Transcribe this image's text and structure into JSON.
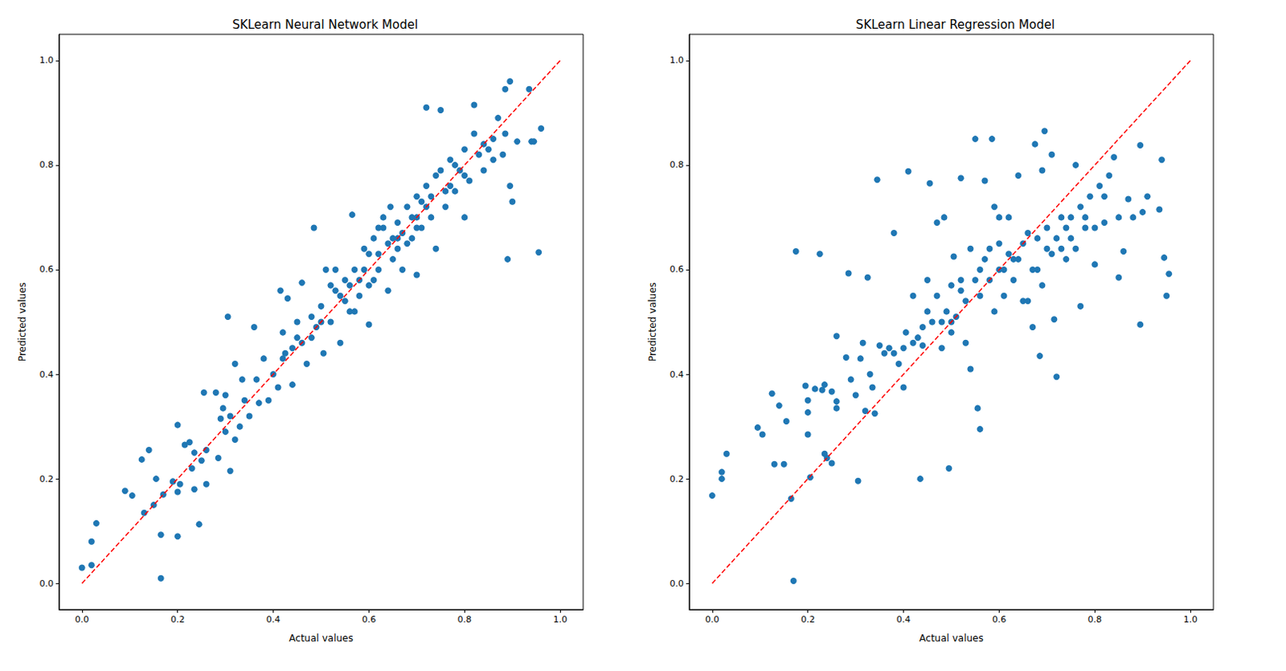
{
  "chart_data": [
    {
      "type": "scatter",
      "title": "SKLearn Neural Network Model",
      "x_label": "Actual values",
      "y_label": "Predicted values",
      "xlim": [
        -0.048,
        1.048
      ],
      "ylim": [
        -0.05,
        1.05
      ],
      "xticks": [
        {
          "value": 0,
          "label": "0.0"
        },
        {
          "value": 0.2,
          "label": "0.2"
        },
        {
          "value": 0.4,
          "label": "0.4"
        },
        {
          "value": 0.6,
          "label": "0.6"
        },
        {
          "value": 0.8,
          "label": "0.8"
        },
        {
          "value": 1,
          "label": "1.0"
        }
      ],
      "yticks": [
        {
          "value": 0,
          "label": "0.0"
        },
        {
          "value": 0.2,
          "label": "0.2"
        },
        {
          "value": 0.4,
          "label": "0.4"
        },
        {
          "value": 0.6,
          "label": "0.6"
        },
        {
          "value": 0.8,
          "label": "0.8"
        },
        {
          "value": 1,
          "label": "1.0"
        }
      ],
      "grid": false,
      "series": [
        {
          "type": "scatter",
          "color": "#1f77b4",
          "marker": "circle",
          "x": [
            0,
            0.02,
            0.02,
            0.03,
            0.09,
            0.105,
            0.125,
            0.13,
            0.14,
            0.15,
            0.155,
            0.165,
            0.165,
            0.17,
            0.19,
            0.2,
            0.2,
            0.2,
            0.205,
            0.215,
            0.225,
            0.23,
            0.235,
            0.235,
            0.245,
            0.25,
            0.255,
            0.26,
            0.26,
            0.28,
            0.285,
            0.29,
            0.295,
            0.3,
            0.3,
            0.305,
            0.31,
            0.31,
            0.32,
            0.32,
            0.33,
            0.335,
            0.34,
            0.35,
            0.36,
            0.365,
            0.37,
            0.38,
            0.39,
            0.4,
            0.41,
            0.415,
            0.42,
            0.425,
            0.43,
            0.44,
            0.45,
            0.46,
            0.47,
            0.48,
            0.485,
            0.49,
            0.5,
            0.505,
            0.51,
            0.52,
            0.53,
            0.54,
            0.55,
            0.56,
            0.565,
            0.57,
            0.58,
            0.59,
            0.6,
            0.6,
            0.61,
            0.62,
            0.63,
            0.64,
            0.645,
            0.65,
            0.66,
            0.67,
            0.68,
            0.69,
            0.7,
            0.7,
            0.71,
            0.72,
            0.72,
            0.73,
            0.74,
            0.75,
            0.75,
            0.76,
            0.77,
            0.78,
            0.79,
            0.8,
            0.8,
            0.81,
            0.82,
            0.83,
            0.84,
            0.85,
            0.86,
            0.87,
            0.88,
            0.885,
            0.89,
            0.895,
            0.895,
            0.9,
            0.91,
            0.935,
            0.94,
            0.945,
            0.955,
            0.96,
            0.885,
            0.86,
            0.82,
            0.78,
            0.7,
            0.66,
            0.62,
            0.58,
            0.54,
            0.5,
            0.46,
            0.42,
            0.55,
            0.6,
            0.65,
            0.68,
            0.72,
            0.76,
            0.52,
            0.48,
            0.44,
            0.57,
            0.63,
            0.67,
            0.74,
            0.8,
            0.84,
            0.53,
            0.45,
            0.61,
            0.69,
            0.71,
            0.77,
            0.59,
            0.56,
            0.64,
            0.66,
            0.7,
            0.73,
            0.62
          ],
          "values": [
            0.03,
            0.08,
            0.035,
            0.115,
            0.177,
            0.168,
            0.237,
            0.135,
            0.255,
            0.15,
            0.2,
            0.01,
            0.093,
            0.17,
            0.195,
            0.09,
            0.303,
            0.175,
            0.19,
            0.265,
            0.27,
            0.22,
            0.25,
            0.18,
            0.113,
            0.235,
            0.365,
            0.19,
            0.255,
            0.365,
            0.24,
            0.315,
            0.335,
            0.36,
            0.29,
            0.51,
            0.215,
            0.32,
            0.42,
            0.275,
            0.3,
            0.39,
            0.35,
            0.32,
            0.49,
            0.39,
            0.345,
            0.43,
            0.35,
            0.4,
            0.375,
            0.56,
            0.48,
            0.44,
            0.545,
            0.38,
            0.47,
            0.575,
            0.42,
            0.51,
            0.68,
            0.49,
            0.53,
            0.44,
            0.6,
            0.5,
            0.56,
            0.46,
            0.58,
            0.52,
            0.705,
            0.6,
            0.55,
            0.64,
            0.57,
            0.495,
            0.66,
            0.6,
            0.68,
            0.56,
            0.72,
            0.62,
            0.69,
            0.6,
            0.72,
            0.66,
            0.74,
            0.59,
            0.68,
            0.91,
            0.76,
            0.7,
            0.64,
            0.905,
            0.79,
            0.72,
            0.81,
            0.75,
            0.79,
            0.7,
            0.83,
            0.77,
            0.915,
            0.82,
            0.79,
            0.83,
            0.81,
            0.89,
            0.82,
            0.945,
            0.62,
            0.96,
            0.76,
            0.73,
            0.845,
            0.945,
            0.845,
            0.845,
            0.633,
            0.87,
            0.86,
            0.85,
            0.86,
            0.8,
            0.7,
            0.66,
            0.63,
            0.58,
            0.55,
            0.5,
            0.46,
            0.43,
            0.54,
            0.63,
            0.66,
            0.65,
            0.72,
            0.75,
            0.57,
            0.47,
            0.45,
            0.52,
            0.7,
            0.67,
            0.78,
            0.78,
            0.84,
            0.6,
            0.5,
            0.58,
            0.7,
            0.73,
            0.76,
            0.6,
            0.57,
            0.65,
            0.64,
            0.68,
            0.74,
            0.68
          ]
        },
        {
          "type": "line",
          "color": "#ff0000",
          "line_style": "dashed",
          "x": [
            0,
            1
          ],
          "values": [
            0,
            1
          ]
        }
      ]
    },
    {
      "type": "scatter",
      "title": "SKLearn Linear Regression Model",
      "x_label": "Actual values",
      "y_label": "Predicted values",
      "xlim": [
        -0.048,
        1.048
      ],
      "ylim": [
        -0.05,
        1.05
      ],
      "xticks": [
        {
          "value": 0,
          "label": "0.0"
        },
        {
          "value": 0.2,
          "label": "0.2"
        },
        {
          "value": 0.4,
          "label": "0.4"
        },
        {
          "value": 0.6,
          "label": "0.6"
        },
        {
          "value": 0.8,
          "label": "0.8"
        },
        {
          "value": 1,
          "label": "1.0"
        }
      ],
      "yticks": [
        {
          "value": 0,
          "label": "0.0"
        },
        {
          "value": 0.2,
          "label": "0.2"
        },
        {
          "value": 0.4,
          "label": "0.4"
        },
        {
          "value": 0.6,
          "label": "0.6"
        },
        {
          "value": 0.8,
          "label": "0.8"
        },
        {
          "value": 1,
          "label": "1.0"
        }
      ],
      "grid": false,
      "series": [
        {
          "type": "scatter",
          "color": "#1f77b4",
          "marker": "circle",
          "x": [
            0,
            0.02,
            0.02,
            0.03,
            0.095,
            0.105,
            0.125,
            0.13,
            0.14,
            0.15,
            0.155,
            0.165,
            0.17,
            0.175,
            0.195,
            0.2,
            0.2,
            0.2,
            0.205,
            0.215,
            0.225,
            0.23,
            0.235,
            0.235,
            0.24,
            0.25,
            0.25,
            0.26,
            0.26,
            0.26,
            0.28,
            0.285,
            0.29,
            0.3,
            0.305,
            0.31,
            0.315,
            0.32,
            0.325,
            0.33,
            0.335,
            0.34,
            0.345,
            0.35,
            0.36,
            0.37,
            0.38,
            0.39,
            0.4,
            0.405,
            0.41,
            0.42,
            0.43,
            0.435,
            0.44,
            0.45,
            0.455,
            0.46,
            0.47,
            0.48,
            0.485,
            0.49,
            0.495,
            0.5,
            0.505,
            0.51,
            0.52,
            0.53,
            0.54,
            0.54,
            0.55,
            0.555,
            0.56,
            0.56,
            0.57,
            0.58,
            0.585,
            0.59,
            0.6,
            0.61,
            0.62,
            0.63,
            0.64,
            0.65,
            0.66,
            0.67,
            0.675,
            0.68,
            0.685,
            0.69,
            0.695,
            0.7,
            0.71,
            0.715,
            0.72,
            0.73,
            0.74,
            0.75,
            0.76,
            0.77,
            0.78,
            0.79,
            0.8,
            0.81,
            0.82,
            0.83,
            0.84,
            0.85,
            0.86,
            0.87,
            0.88,
            0.895,
            0.895,
            0.9,
            0.91,
            0.935,
            0.94,
            0.945,
            0.95,
            0.955,
            0.45,
            0.47,
            0.5,
            0.52,
            0.55,
            0.57,
            0.6,
            0.62,
            0.65,
            0.67,
            0.7,
            0.72,
            0.75,
            0.77,
            0.8,
            0.82,
            0.85,
            0.4,
            0.42,
            0.38,
            0.48,
            0.53,
            0.58,
            0.63,
            0.68,
            0.73,
            0.78,
            0.6,
            0.64,
            0.66,
            0.56,
            0.59,
            0.61,
            0.69,
            0.71,
            0.74,
            0.76,
            0.5,
            0.44,
            0.52
          ],
          "values": [
            0.168,
            0.213,
            0.2,
            0.248,
            0.298,
            0.285,
            0.363,
            0.228,
            0.34,
            0.228,
            0.31,
            0.162,
            0.005,
            0.635,
            0.378,
            0.35,
            0.285,
            0.327,
            0.203,
            0.372,
            0.63,
            0.37,
            0.248,
            0.38,
            0.24,
            0.23,
            0.367,
            0.348,
            0.335,
            0.473,
            0.432,
            0.593,
            0.39,
            0.36,
            0.196,
            0.43,
            0.46,
            0.33,
            0.585,
            0.4,
            0.375,
            0.325,
            0.772,
            0.455,
            0.44,
            0.45,
            0.67,
            0.42,
            0.375,
            0.48,
            0.788,
            0.55,
            0.47,
            0.2,
            0.455,
            0.58,
            0.765,
            0.5,
            0.69,
            0.45,
            0.7,
            0.52,
            0.22,
            0.57,
            0.625,
            0.51,
            0.775,
            0.46,
            0.64,
            0.41,
            0.85,
            0.335,
            0.295,
            0.6,
            0.77,
            0.58,
            0.85,
            0.52,
            0.65,
            0.55,
            0.7,
            0.62,
            0.78,
            0.54,
            0.67,
            0.49,
            0.84,
            0.6,
            0.435,
            0.79,
            0.865,
            0.64,
            0.82,
            0.505,
            0.395,
            0.7,
            0.62,
            0.66,
            0.8,
            0.53,
            0.68,
            0.74,
            0.61,
            0.76,
            0.69,
            0.78,
            0.815,
            0.585,
            0.635,
            0.735,
            0.7,
            0.838,
            0.495,
            0.71,
            0.74,
            0.715,
            0.81,
            0.623,
            0.55,
            0.592,
            0.52,
            0.55,
            0.5,
            0.56,
            0.58,
            0.62,
            0.6,
            0.63,
            0.65,
            0.6,
            0.68,
            0.66,
            0.7,
            0.72,
            0.68,
            0.74,
            0.7,
            0.45,
            0.46,
            0.44,
            0.5,
            0.54,
            0.64,
            0.58,
            0.66,
            0.64,
            0.7,
            0.7,
            0.62,
            0.54,
            0.55,
            0.72,
            0.6,
            0.57,
            0.63,
            0.68,
            0.64,
            0.48,
            0.49,
            0.58
          ]
        },
        {
          "type": "line",
          "color": "#ff0000",
          "line_style": "dashed",
          "x": [
            0,
            1
          ],
          "values": [
            0,
            1
          ]
        }
      ]
    }
  ]
}
